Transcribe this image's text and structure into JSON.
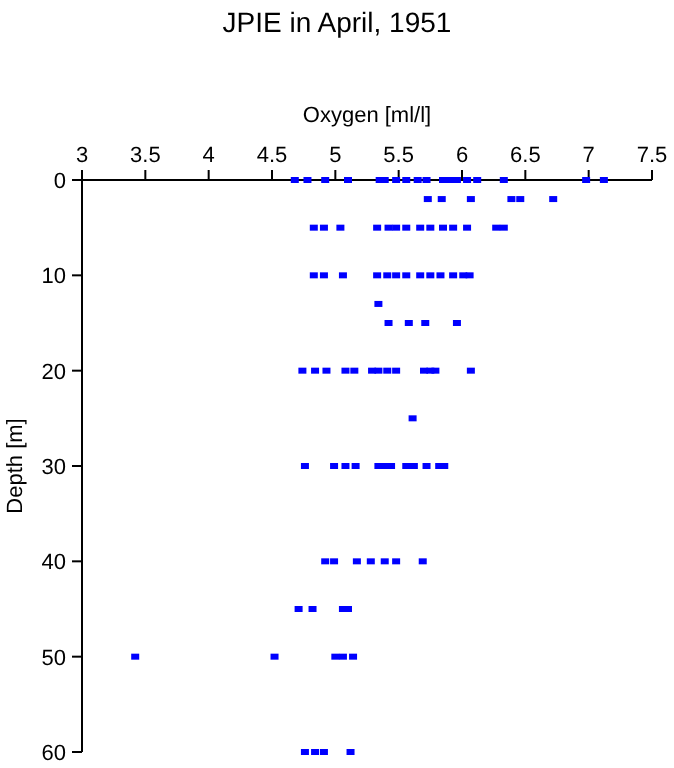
{
  "chart_data": {
    "type": "scatter",
    "title": "JPIE in April, 1951",
    "xlabel": "Oxygen [ml/l]",
    "ylabel": "Depth [m]",
    "xlim": [
      3,
      7.5
    ],
    "xticks": [
      3,
      3.5,
      4,
      4.5,
      5,
      5.5,
      6,
      6.5,
      7,
      7.5
    ],
    "ylim": [
      60,
      0
    ],
    "yticks": [
      0,
      10,
      20,
      30,
      40,
      50,
      60
    ],
    "marker": "square",
    "series": [
      {
        "color": "#0000ff",
        "x": [
          4.68,
          4.78,
          4.92,
          5.1,
          5.35,
          5.39,
          5.48,
          5.56,
          5.65,
          5.72,
          5.85,
          5.91,
          5.96,
          6.04,
          6.12,
          6.33,
          6.98,
          7.12,
          5.73,
          5.84,
          6.07,
          6.39,
          6.46,
          6.72,
          4.83,
          4.91,
          5.04,
          5.33,
          5.42,
          5.48,
          5.56,
          5.67,
          5.75,
          5.85,
          5.93,
          6.04,
          6.27,
          6.33,
          4.83,
          4.91,
          5.06,
          5.33,
          5.41,
          5.48,
          5.56,
          5.67,
          5.75,
          5.83,
          5.93,
          6.01,
          6.06,
          5.34,
          5.42,
          5.58,
          5.71,
          5.96,
          4.74,
          4.84,
          4.93,
          5.08,
          5.15,
          5.29,
          5.34,
          5.41,
          5.48,
          5.7,
          5.75,
          5.79,
          6.07,
          5.61,
          4.76,
          4.99,
          5.08,
          5.16,
          5.34,
          5.39,
          5.44,
          5.56,
          5.62,
          5.72,
          5.82,
          5.86,
          4.92,
          4.99,
          5.17,
          5.28,
          5.39,
          5.48,
          5.69,
          4.71,
          4.82,
          5.06,
          5.1,
          3.42,
          4.52,
          5.0,
          5.06,
          5.14,
          4.76,
          4.84,
          4.91,
          5.12
        ],
        "values": [
          0,
          0,
          0,
          0,
          0,
          0,
          0,
          0,
          0,
          0,
          0,
          0,
          0,
          0,
          0,
          0,
          0,
          0,
          2,
          2,
          2,
          2,
          2,
          2,
          5,
          5,
          5,
          5,
          5,
          5,
          5,
          5,
          5,
          5,
          5,
          5,
          5,
          5,
          10,
          10,
          10,
          10,
          10,
          10,
          10,
          10,
          10,
          10,
          10,
          10,
          10,
          13,
          15,
          15,
          15,
          15,
          20,
          20,
          20,
          20,
          20,
          20,
          20,
          20,
          20,
          20,
          20,
          20,
          20,
          25,
          30,
          30,
          30,
          30,
          30,
          30,
          30,
          30,
          30,
          30,
          30,
          30,
          40,
          40,
          40,
          40,
          40,
          40,
          40,
          45,
          45,
          45,
          45,
          50,
          50,
          50,
          50,
          50,
          60,
          60,
          60,
          60
        ]
      }
    ]
  }
}
